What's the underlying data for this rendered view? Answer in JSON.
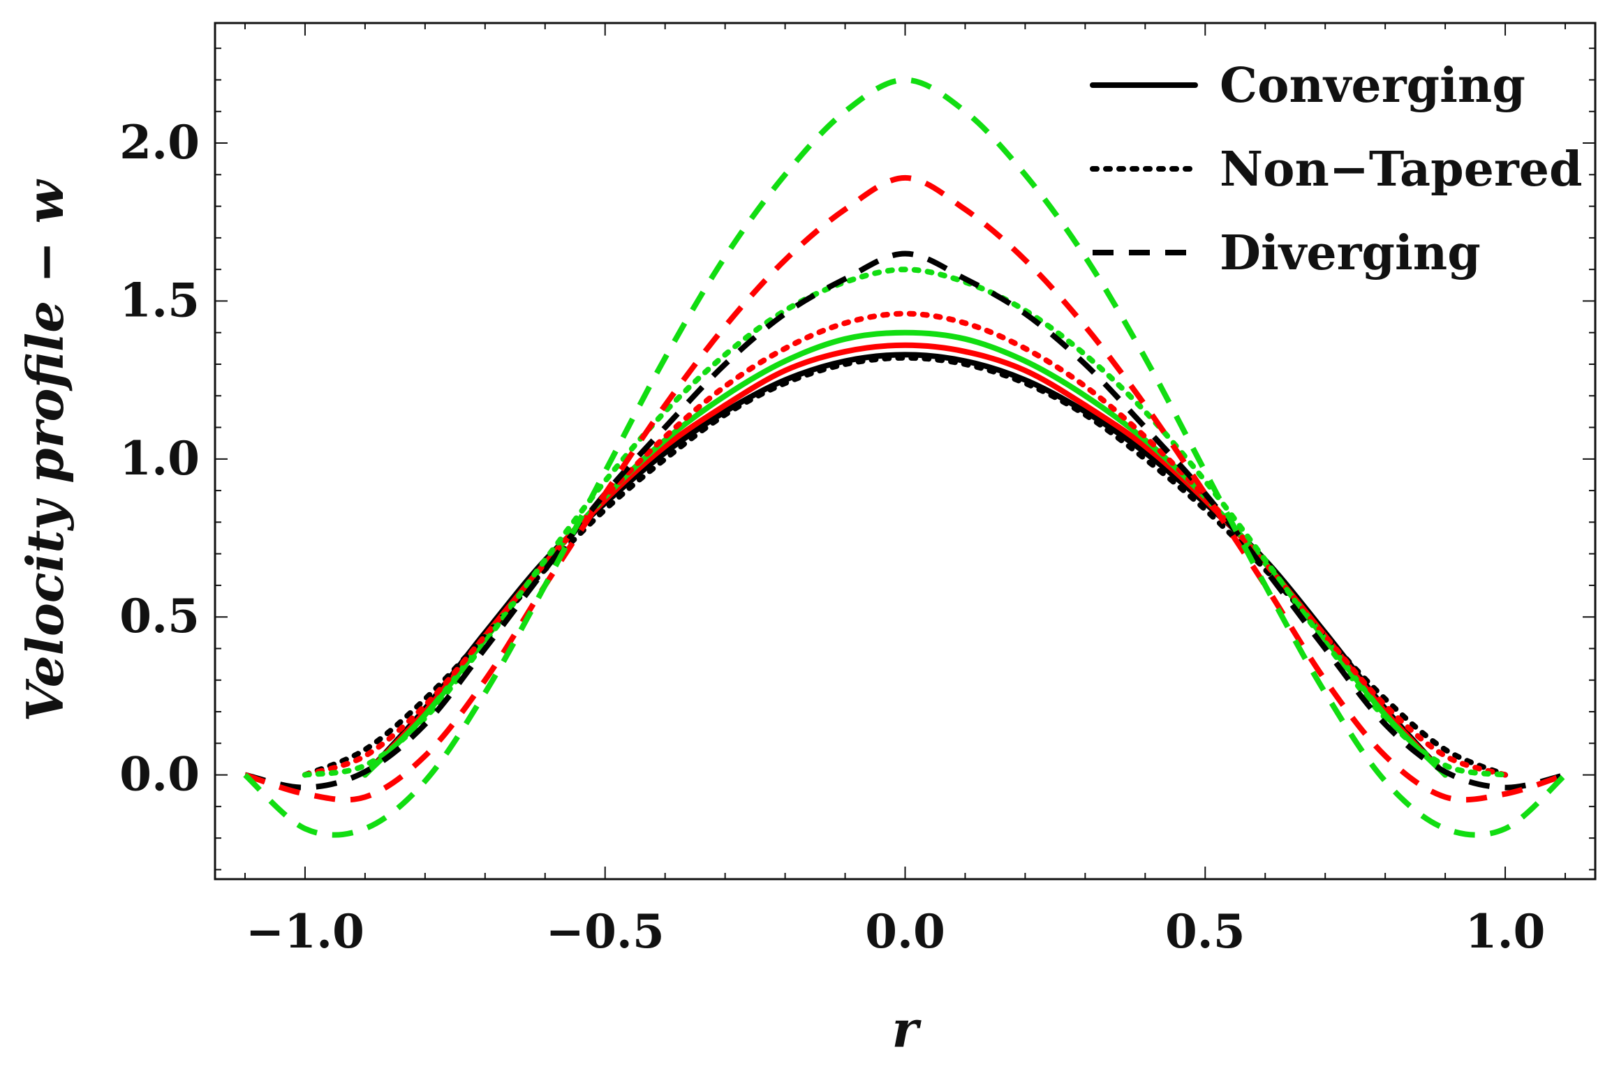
{
  "chart_data": {
    "type": "line",
    "title": "",
    "xlabel": "r",
    "ylabel": "Velocity profile − w",
    "xlim": [
      -1.15,
      1.15
    ],
    "ylim": [
      -0.33,
      2.38
    ],
    "xticks": [
      -1.0,
      -0.5,
      0.0,
      0.5,
      1.0
    ],
    "xtick_labels": [
      "−1.0",
      "−0.5",
      "0.0",
      "0.5",
      "1.0"
    ],
    "yticks": [
      0.0,
      0.5,
      1.0,
      1.5,
      2.0
    ],
    "ytick_labels": [
      "0.0",
      "0.5",
      "1.0",
      "1.5",
      "2.0"
    ],
    "legend": {
      "position": "top-right",
      "entries": [
        {
          "label": "Converging",
          "style": "solid"
        },
        {
          "label": "Non−Tapered",
          "style": "dotted"
        },
        {
          "label": "Diverging",
          "style": "dashed"
        }
      ]
    },
    "series": [
      {
        "name": "Converging (black)",
        "style": "solid",
        "color": "#000000",
        "x": [
          -0.9,
          -0.8,
          -0.7,
          -0.6,
          -0.5,
          -0.4,
          -0.3,
          -0.2,
          -0.1,
          0.0,
          0.1,
          0.2,
          0.3,
          0.4,
          0.5,
          0.6,
          0.7,
          0.8,
          0.9
        ],
        "y": [
          0.0,
          0.21,
          0.45,
          0.68,
          0.86,
          1.02,
          1.15,
          1.25,
          1.31,
          1.33,
          1.31,
          1.25,
          1.15,
          1.02,
          0.86,
          0.68,
          0.45,
          0.21,
          0.0
        ]
      },
      {
        "name": "Converging (red)",
        "style": "solid",
        "color": "#ff0000",
        "x": [
          -0.9,
          -0.8,
          -0.7,
          -0.6,
          -0.5,
          -0.4,
          -0.3,
          -0.2,
          -0.1,
          0.0,
          0.1,
          0.2,
          0.3,
          0.4,
          0.5,
          0.6,
          0.7,
          0.8,
          0.9
        ],
        "y": [
          0.0,
          0.2,
          0.44,
          0.67,
          0.87,
          1.04,
          1.17,
          1.28,
          1.34,
          1.36,
          1.34,
          1.28,
          1.17,
          1.04,
          0.87,
          0.67,
          0.44,
          0.2,
          0.0
        ]
      },
      {
        "name": "Converging (green)",
        "style": "solid",
        "color": "#11dd11",
        "x": [
          -0.9,
          -0.8,
          -0.7,
          -0.6,
          -0.5,
          -0.4,
          -0.3,
          -0.2,
          -0.1,
          0.0,
          0.1,
          0.2,
          0.3,
          0.4,
          0.5,
          0.6,
          0.7,
          0.8,
          0.9
        ],
        "y": [
          0.0,
          0.19,
          0.43,
          0.67,
          0.88,
          1.06,
          1.2,
          1.31,
          1.38,
          1.4,
          1.38,
          1.31,
          1.2,
          1.06,
          0.88,
          0.67,
          0.43,
          0.19,
          0.0
        ]
      },
      {
        "name": "Non-Tapered (black)",
        "style": "dotted",
        "color": "#000000",
        "x": [
          -1.0,
          -0.9,
          -0.8,
          -0.7,
          -0.6,
          -0.5,
          -0.4,
          -0.3,
          -0.2,
          -0.1,
          0.0,
          0.1,
          0.2,
          0.3,
          0.4,
          0.5,
          0.6,
          0.7,
          0.8,
          0.9,
          1.0
        ],
        "y": [
          0.0,
          0.08,
          0.24,
          0.44,
          0.65,
          0.84,
          1.0,
          1.14,
          1.24,
          1.3,
          1.32,
          1.3,
          1.24,
          1.14,
          1.0,
          0.84,
          0.65,
          0.44,
          0.24,
          0.08,
          0.0
        ]
      },
      {
        "name": "Non-Tapered (red)",
        "style": "dotted",
        "color": "#ff0000",
        "x": [
          -1.0,
          -0.9,
          -0.8,
          -0.7,
          -0.6,
          -0.5,
          -0.4,
          -0.3,
          -0.2,
          -0.1,
          0.0,
          0.1,
          0.2,
          0.3,
          0.4,
          0.5,
          0.6,
          0.7,
          0.8,
          0.9,
          1.0
        ],
        "y": [
          0.0,
          0.06,
          0.22,
          0.44,
          0.67,
          0.88,
          1.07,
          1.23,
          1.35,
          1.43,
          1.46,
          1.43,
          1.35,
          1.23,
          1.07,
          0.88,
          0.67,
          0.44,
          0.22,
          0.06,
          0.0
        ]
      },
      {
        "name": "Non-Tapered (green)",
        "style": "dotted",
        "color": "#11dd11",
        "x": [
          -1.0,
          -0.9,
          -0.8,
          -0.7,
          -0.6,
          -0.5,
          -0.4,
          -0.3,
          -0.2,
          -0.1,
          0.0,
          0.1,
          0.2,
          0.3,
          0.4,
          0.5,
          0.6,
          0.7,
          0.8,
          0.9,
          1.0
        ],
        "y": [
          0.0,
          0.03,
          0.18,
          0.42,
          0.68,
          0.93,
          1.15,
          1.33,
          1.47,
          1.56,
          1.6,
          1.56,
          1.47,
          1.33,
          1.15,
          0.93,
          0.68,
          0.42,
          0.18,
          0.03,
          0.0
        ]
      },
      {
        "name": "Diverging (black)",
        "style": "dashed",
        "color": "#000000",
        "x": [
          -1.1,
          -1.0,
          -0.9,
          -0.8,
          -0.7,
          -0.6,
          -0.5,
          -0.4,
          -0.3,
          -0.2,
          -0.1,
          0.0,
          0.1,
          0.2,
          0.3,
          0.4,
          0.5,
          0.6,
          0.7,
          0.8,
          0.9,
          1.0,
          1.1
        ],
        "y": [
          0.0,
          -0.04,
          0.01,
          0.16,
          0.4,
          0.65,
          0.89,
          1.1,
          1.3,
          1.46,
          1.57,
          1.65,
          1.57,
          1.46,
          1.3,
          1.1,
          0.89,
          0.65,
          0.4,
          0.16,
          0.01,
          -0.04,
          0.0
        ]
      },
      {
        "name": "Diverging (red)",
        "style": "dashed",
        "color": "#ff0000",
        "x": [
          -1.1,
          -1.0,
          -0.9,
          -0.8,
          -0.7,
          -0.6,
          -0.5,
          -0.4,
          -0.3,
          -0.2,
          -0.1,
          0.0,
          0.1,
          0.2,
          0.3,
          0.4,
          0.5,
          0.6,
          0.7,
          0.8,
          0.9,
          1.0,
          1.1
        ],
        "y": [
          0.0,
          -0.06,
          -0.07,
          0.06,
          0.3,
          0.6,
          0.89,
          1.17,
          1.42,
          1.63,
          1.79,
          1.89,
          1.79,
          1.63,
          1.42,
          1.17,
          0.89,
          0.6,
          0.3,
          0.06,
          -0.07,
          -0.06,
          0.0
        ]
      },
      {
        "name": "Diverging (green)",
        "style": "dashed",
        "color": "#11dd11",
        "x": [
          -1.1,
          -1.0,
          -0.9,
          -0.8,
          -0.7,
          -0.6,
          -0.5,
          -0.4,
          -0.3,
          -0.2,
          -0.1,
          0.0,
          0.1,
          0.2,
          0.3,
          0.4,
          0.5,
          0.6,
          0.7,
          0.8,
          0.9,
          1.0,
          1.1
        ],
        "y": [
          0.0,
          -0.17,
          -0.17,
          -0.02,
          0.26,
          0.6,
          0.96,
          1.32,
          1.64,
          1.9,
          2.1,
          2.2,
          2.1,
          1.9,
          1.64,
          1.32,
          0.96,
          0.6,
          0.26,
          -0.02,
          -0.17,
          -0.17,
          0.0
        ]
      }
    ]
  }
}
